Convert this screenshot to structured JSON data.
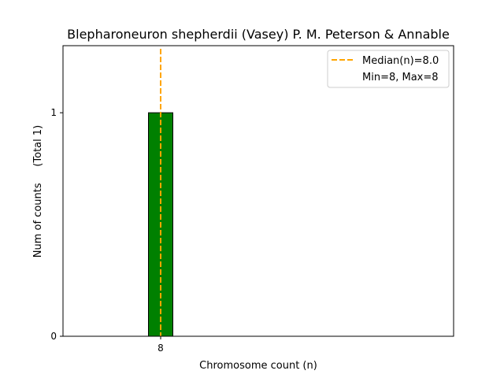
{
  "chart_data": {
    "type": "bar",
    "title": "Blepharoneuron shepherdii (Vasey) P. M. Peterson & Annable",
    "xlabel": "Chromosome count (n)",
    "ylabel": "Num of counts     (Total 1)",
    "categories": [
      "8"
    ],
    "values": [
      1
    ],
    "xlim": [
      6,
      14
    ],
    "ylim": [
      0,
      1.3
    ],
    "y_ticks": [
      "0",
      "1"
    ],
    "x_ticks": [
      "8"
    ],
    "grid": false,
    "legend_position": "top-right",
    "median": 8.0,
    "legend": {
      "median_label": "Median(n)=8.0",
      "range_label": "Min=8, Max=8"
    },
    "colors": {
      "bar_fill": "#008000",
      "bar_edge": "#000000",
      "median_line": "#FFA500"
    }
  }
}
